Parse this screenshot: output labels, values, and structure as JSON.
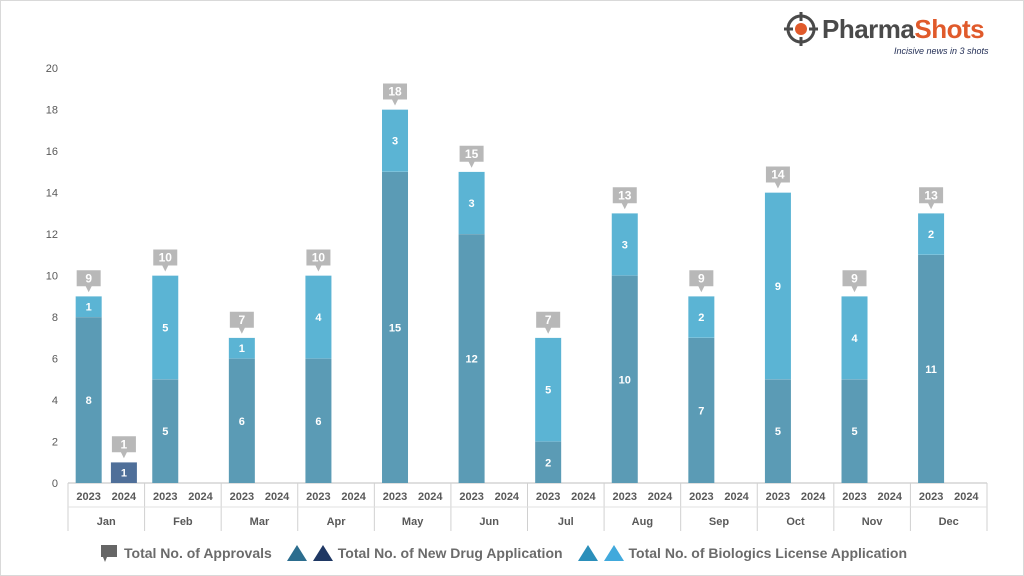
{
  "logo": {
    "name_part1": "Pharma",
    "name_part2": "Shots",
    "tagline": "Incisive news in 3 shots"
  },
  "legend": {
    "approvals": "Total No. of Approvals",
    "nda": "Total No. of New Drug Application",
    "bla": "Total No. of Biologics License Application"
  },
  "colors": {
    "nda_2023": "#5b9bb5",
    "bla_2023": "#5bb4d4",
    "nda_2024": "#4f6f99",
    "bla_2024": "#3ea6d6",
    "label_box": "#b8b8b8",
    "legend_nda_a": "#2c6d8e",
    "legend_nda_b": "#1f3864",
    "legend_bla_a": "#2b8fba",
    "legend_bla_b": "#41a9dc"
  },
  "chart_data": {
    "type": "bar",
    "stacked": true,
    "ylim": [
      0,
      20
    ],
    "yticks": [
      0,
      2,
      4,
      6,
      8,
      10,
      12,
      14,
      16,
      18,
      20
    ],
    "grid": false,
    "legend_position": "bottom",
    "months": [
      "Jan",
      "Feb",
      "Mar",
      "Apr",
      "May",
      "Jun",
      "Jul",
      "Aug",
      "Sep",
      "Oct",
      "Nov",
      "Dec"
    ],
    "years": [
      "2023",
      "2024"
    ],
    "series": [
      {
        "name": "Total No. of New Drug Application",
        "values_2023": [
          8,
          5,
          6,
          6,
          15,
          12,
          2,
          10,
          7,
          5,
          5,
          11
        ],
        "values_2024": [
          1,
          0,
          0,
          0,
          0,
          0,
          0,
          0,
          0,
          0,
          0,
          0
        ]
      },
      {
        "name": "Total No. of Biologics License Application",
        "values_2023": [
          1,
          5,
          1,
          4,
          3,
          3,
          5,
          3,
          2,
          9,
          4,
          2
        ],
        "values_2024": [
          0,
          0,
          0,
          0,
          0,
          0,
          0,
          0,
          0,
          0,
          0,
          0
        ]
      }
    ],
    "totals_2023": [
      9,
      10,
      7,
      10,
      18,
      15,
      7,
      13,
      9,
      14,
      9,
      13
    ],
    "totals_2024": [
      1,
      0,
      0,
      0,
      0,
      0,
      0,
      0,
      0,
      0,
      0,
      0
    ]
  }
}
